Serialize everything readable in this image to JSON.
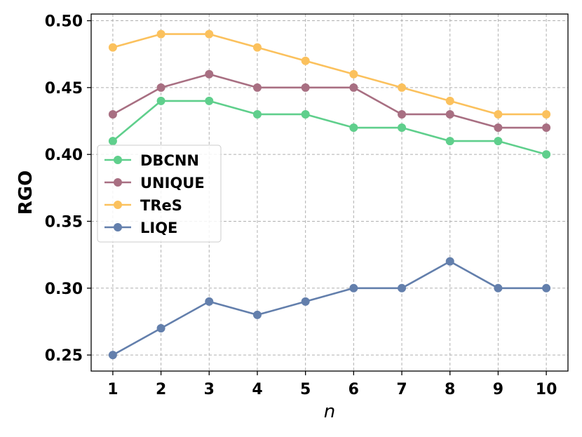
{
  "chart_data": {
    "type": "line",
    "title": "",
    "xlabel": "n",
    "ylabel": "RGO",
    "x": [
      1,
      2,
      3,
      4,
      5,
      6,
      7,
      8,
      9,
      10
    ],
    "x_tick_labels": [
      "1",
      "2",
      "3",
      "4",
      "5",
      "6",
      "7",
      "8",
      "9",
      "10"
    ],
    "y_ticks": [
      0.25,
      0.3,
      0.35,
      0.4,
      0.45,
      0.5
    ],
    "y_tick_labels": [
      "0.25",
      "0.30",
      "0.35",
      "0.40",
      "0.45",
      "0.50"
    ],
    "ylim": [
      0.238,
      0.505
    ],
    "xlim": [
      0.55,
      10.45
    ],
    "grid": true,
    "legend_position": "center-left",
    "series": [
      {
        "name": "DBCNN",
        "color": "#5fcf8c",
        "values": [
          0.41,
          0.44,
          0.44,
          0.43,
          0.43,
          0.42,
          0.42,
          0.41,
          0.41,
          0.4
        ]
      },
      {
        "name": "UNIQUE",
        "color": "#a86f82",
        "values": [
          0.43,
          0.45,
          0.46,
          0.45,
          0.45,
          0.45,
          0.43,
          0.43,
          0.42,
          0.42
        ]
      },
      {
        "name": "TReS",
        "color": "#fbc15d",
        "values": [
          0.48,
          0.49,
          0.49,
          0.48,
          0.47,
          0.46,
          0.45,
          0.44,
          0.43,
          0.43
        ]
      },
      {
        "name": "LIQE",
        "color": "#637fac",
        "values": [
          0.25,
          0.27,
          0.29,
          0.28,
          0.29,
          0.3,
          0.3,
          0.32,
          0.3,
          0.3
        ]
      }
    ]
  }
}
